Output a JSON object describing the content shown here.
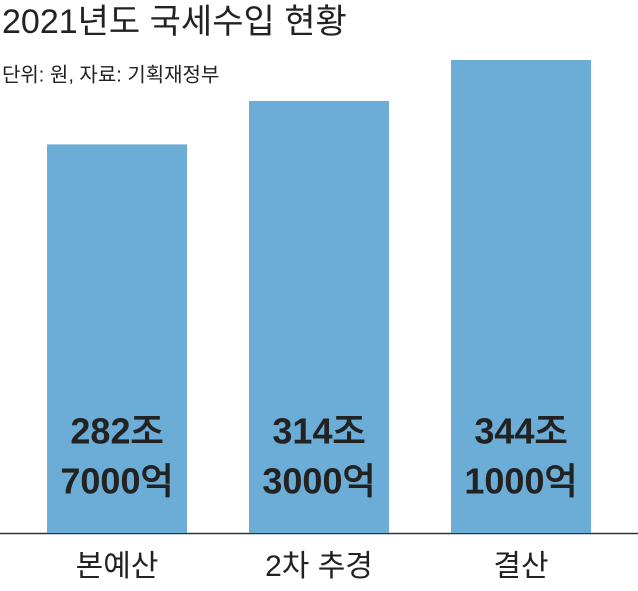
{
  "chart_data": {
    "type": "bar",
    "title": "2021년도 국세수입 현황",
    "subtitle": "단위: 원, 자료: 기획재정부",
    "categories": [
      "본예산",
      "2차 추경",
      "결산"
    ],
    "values": [
      282.7,
      314.3,
      344.1
    ],
    "value_labels": [
      [
        "282조",
        "7000억"
      ],
      [
        "314조",
        "3000억"
      ],
      [
        "344조",
        "1000억"
      ]
    ],
    "color": "#6badd6"
  }
}
